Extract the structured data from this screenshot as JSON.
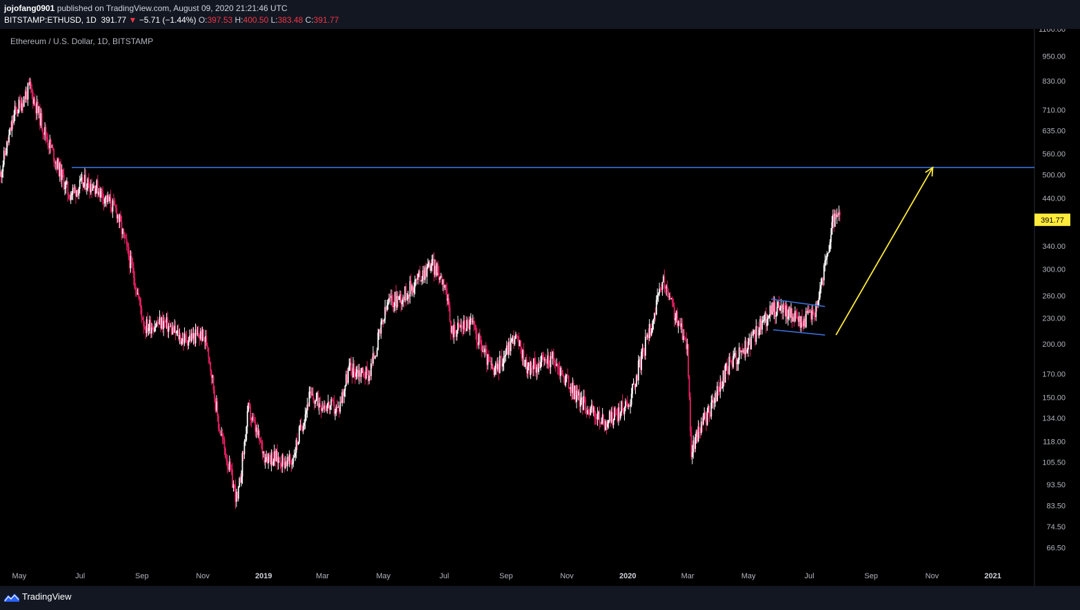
{
  "header": {
    "author": "jojofang0901",
    "published_text": "published on TradingView.com, August 09, 2020 21:21:46 UTC",
    "symbol": "BITSTAMP:ETHUSD, 1D",
    "last": "391.77",
    "change_arrow": "▼",
    "change": "−5.71 (−1.44%)",
    "o_label": "O:",
    "o_value": "397.53",
    "h_label": "H:",
    "h_value": "400.50",
    "l_label": "L:",
    "l_value": "383.48",
    "c_label": "C:",
    "c_value": "391.77"
  },
  "footer": {
    "brand": "TradingView",
    "logo_icon": "tradingview-logo-icon"
  },
  "colors": {
    "background": "#000000",
    "frame": "#131722",
    "candle_up": "#ffffff",
    "candle_down": "#e91e63",
    "resistance_line": "#3a6fd8",
    "target_arrow": "#ffeb3b",
    "flag_lines": "#3a6fd8",
    "price_badge": "#ffeb3b",
    "axis_text": "#b2b5be"
  },
  "chart_data": {
    "type": "candlestick",
    "title": "Ethereum / U.S. Dollar, 1D, BITSTAMP",
    "y_scale": "log",
    "ylim": [
      60,
      1100
    ],
    "y_ticks": [
      "1100.00",
      "950.00",
      "830.00",
      "710.00",
      "635.00",
      "560.00",
      "500.00",
      "440.00",
      "391.77",
      "340.00",
      "300.00",
      "260.00",
      "230.00",
      "200.00",
      "170.00",
      "150.00",
      "134.00",
      "118.00",
      "105.50",
      "93.50",
      "83.50",
      "74.50",
      "66.50"
    ],
    "x_ticks": [
      "May",
      "Jul",
      "Sep",
      "Nov",
      "2019",
      "Mar",
      "May",
      "Jul",
      "Sep",
      "Nov",
      "2020",
      "Mar",
      "May",
      "Jul",
      "Sep",
      "Nov",
      "2021"
    ],
    "x_ticks_bold": [
      "2019",
      "2020",
      "2021"
    ],
    "x_range": [
      "2018-04-20",
      "2021-02-20"
    ],
    "last_price": "391.77",
    "price_series": {
      "dates": [
        "2018-04-20",
        "2018-05-05",
        "2018-05-20",
        "2018-06-05",
        "2018-06-28",
        "2018-07-15",
        "2018-07-25",
        "2018-08-15",
        "2018-09-01",
        "2018-09-12",
        "2018-10-01",
        "2018-10-20",
        "2018-11-08",
        "2018-11-14",
        "2018-11-25",
        "2018-12-14",
        "2018-12-25",
        "2019-01-10",
        "2019-02-06",
        "2019-02-24",
        "2019-03-25",
        "2019-04-05",
        "2019-04-25",
        "2019-05-14",
        "2019-05-30",
        "2019-06-26",
        "2019-07-10",
        "2019-07-16",
        "2019-08-05",
        "2019-08-28",
        "2019-09-18",
        "2019-10-01",
        "2019-10-25",
        "2019-11-20",
        "2019-12-17",
        "2020-01-10",
        "2020-02-14",
        "2020-03-01",
        "2020-03-09",
        "2020-03-13",
        "2020-03-20",
        "2020-04-01",
        "2020-04-20",
        "2020-05-10",
        "2020-06-01",
        "2020-06-10",
        "2020-07-01",
        "2020-07-15",
        "2020-07-23",
        "2020-07-27",
        "2020-08-02",
        "2020-08-09"
      ],
      "values": [
        500,
        700,
        800,
        620,
        450,
        480,
        470,
        410,
        290,
        220,
        225,
        205,
        210,
        200,
        130,
        85,
        140,
        110,
        105,
        150,
        140,
        175,
        170,
        250,
        260,
        310,
        280,
        215,
        225,
        170,
        210,
        175,
        185,
        150,
        130,
        145,
        280,
        220,
        200,
        110,
        125,
        140,
        180,
        200,
        240,
        245,
        225,
        240,
        290,
        320,
        390,
        391.77
      ]
    },
    "annotations": {
      "resistance_level": 520,
      "target_arrow": {
        "from": [
          "2020-08-05",
          210
        ],
        "to": [
          "2020-11-10",
          520
        ]
      },
      "flag_upper": {
        "from": [
          "2020-06-01",
          255
        ],
        "to": [
          "2020-07-25",
          245
        ]
      },
      "flag_lower": {
        "from": [
          "2020-06-03",
          216
        ],
        "to": [
          "2020-07-25",
          210
        ]
      }
    }
  }
}
